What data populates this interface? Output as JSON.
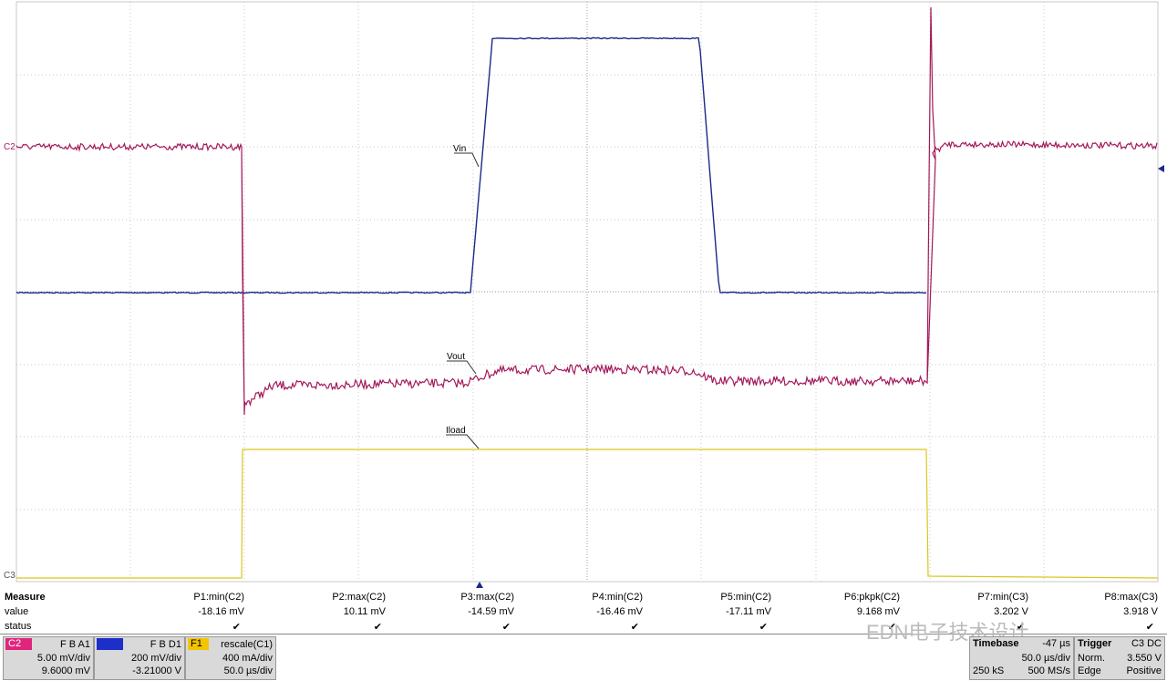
{
  "scope": {
    "channel_markers": {
      "c2": "C2",
      "c3": "C3"
    },
    "trace_labels": {
      "vin": "Vin",
      "vout": "Vout",
      "iload": "Iload"
    },
    "measure": {
      "title": "Measure",
      "row_labels": [
        "value",
        "status"
      ],
      "params": [
        {
          "name": "P1:min(C2)",
          "value": "-18.16 mV",
          "status": "✔"
        },
        {
          "name": "P2:max(C2)",
          "value": "10.11 mV",
          "status": "✔"
        },
        {
          "name": "P3:max(C2)",
          "value": "-14.59 mV",
          "status": "✔"
        },
        {
          "name": "P4:min(C2)",
          "value": "-16.46 mV",
          "status": "✔"
        },
        {
          "name": "P5:min(C2)",
          "value": "-17.11 mV",
          "status": "✔"
        },
        {
          "name": "P6:pkpk(C2)",
          "value": "9.168 mV",
          "status": "✔"
        },
        {
          "name": "P7:min(C3)",
          "value": "3.202 V",
          "status": "✔"
        },
        {
          "name": "P8:max(C3)",
          "value": "3.918 V",
          "status": "✔"
        }
      ]
    },
    "channels": [
      {
        "label": "C2",
        "flags": "F B A1",
        "scale": "5.00 mV/div",
        "offset": "9.6000 mV"
      },
      {
        "flags": "F B D1",
        "scale": "200 mV/div",
        "offset": "-3.21000 V"
      },
      {
        "label": "F1",
        "flags": "rescale(C1)",
        "scale": "400 mA/div",
        "offset": "50.0 µs/div"
      }
    ],
    "timebase": {
      "title": "Timebase",
      "delay": "-47 µs",
      "scale": "50.0 µs/div",
      "samples": "250 kS",
      "rate": "500 MS/s"
    },
    "trigger": {
      "title": "Trigger",
      "source": "C3 DC",
      "mode": "Norm.",
      "level": "3.550 V",
      "type": "Edge",
      "slope": "Positive"
    },
    "watermark": "EDN电子技术设计"
  }
}
